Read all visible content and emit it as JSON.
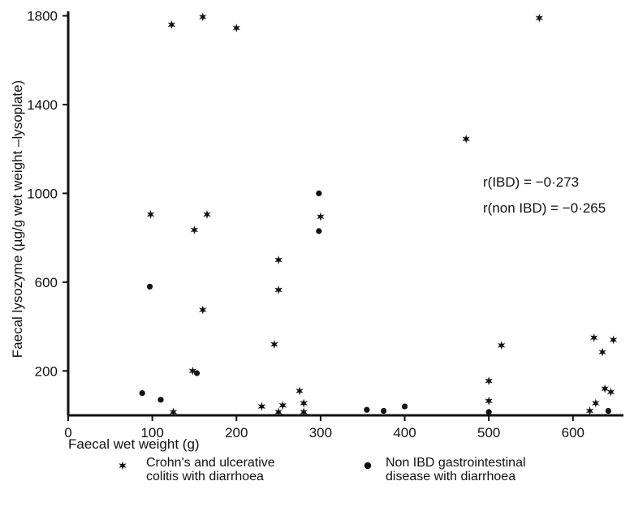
{
  "chart_data": {
    "type": "scatter",
    "title": "",
    "xlabel": "Faecal wet weight (g)",
    "ylabel": "Faecal lysozyme (µg/g wet weight –lysoplate)",
    "xlim": [
      0,
      660
    ],
    "ylim": [
      0,
      1820
    ],
    "xticks": [
      0,
      100,
      200,
      300,
      400,
      500,
      600
    ],
    "yticks": [
      200,
      600,
      1000,
      1400,
      1800
    ],
    "grid": false,
    "legend_position": "bottom",
    "annotations": [
      "r(IBD) = −0·273",
      "r(non IBD) = −0·265"
    ],
    "series": [
      {
        "name": "Crohn's and ulcerative colitis with diarrhoea",
        "marker": "star",
        "points": [
          [
            123,
            1760
          ],
          [
            160,
            1795
          ],
          [
            200,
            1745
          ],
          [
            560,
            1790
          ],
          [
            473,
            1245
          ],
          [
            98,
            905
          ],
          [
            165,
            905
          ],
          [
            300,
            895
          ],
          [
            150,
            835
          ],
          [
            250,
            700
          ],
          [
            250,
            565
          ],
          [
            160,
            475
          ],
          [
            245,
            320
          ],
          [
            515,
            315
          ],
          [
            625,
            350
          ],
          [
            648,
            340
          ],
          [
            635,
            285
          ],
          [
            148,
            200
          ],
          [
            500,
            155
          ],
          [
            275,
            110
          ],
          [
            638,
            120
          ],
          [
            645,
            105
          ],
          [
            500,
            65
          ],
          [
            280,
            55
          ],
          [
            627,
            55
          ],
          [
            255,
            45
          ],
          [
            230,
            40
          ],
          [
            125,
            15
          ],
          [
            250,
            15
          ],
          [
            280,
            15
          ],
          [
            620,
            20
          ]
        ]
      },
      {
        "name": "Non IBD gastrointestinal disease with diarrhoea",
        "marker": "dot",
        "points": [
          [
            298,
            1000
          ],
          [
            298,
            830
          ],
          [
            97,
            580
          ],
          [
            153,
            190
          ],
          [
            88,
            100
          ],
          [
            110,
            70
          ],
          [
            400,
            40
          ],
          [
            355,
            25
          ],
          [
            375,
            20
          ],
          [
            500,
            15
          ],
          [
            642,
            20
          ]
        ]
      }
    ]
  }
}
